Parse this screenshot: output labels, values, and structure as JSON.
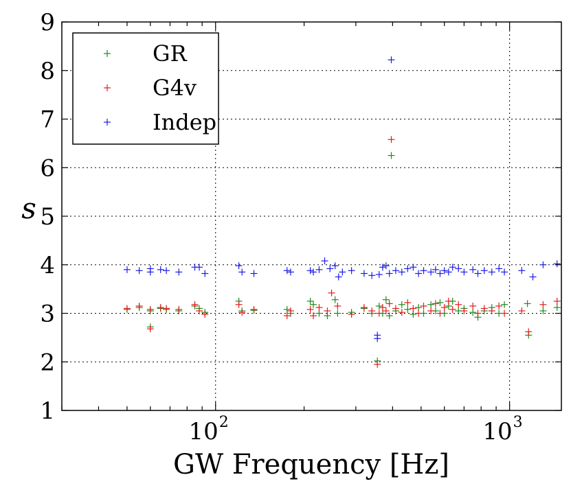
{
  "chart_data": {
    "type": "scatter",
    "title": "",
    "xlabel": "GW Frequency [Hz]",
    "ylabel": "s",
    "xscale": "log",
    "xlim": [
      30,
      1500
    ],
    "ylim": [
      1,
      9
    ],
    "grid": true,
    "legend_position": "top-left",
    "x_ticks": [
      {
        "value": 100,
        "base": "10",
        "exp": "2"
      },
      {
        "value": 1000,
        "base": "10",
        "exp": "3"
      }
    ],
    "y_ticks": [
      "1",
      "2",
      "3",
      "4",
      "5",
      "6",
      "7",
      "8",
      "9"
    ],
    "series": [
      {
        "name": "GR",
        "color": "#1a8a1a",
        "points": [
          [
            50,
            3.08
          ],
          [
            55,
            3.12
          ],
          [
            60,
            3.05
          ],
          [
            60,
            2.72
          ],
          [
            65,
            3.1
          ],
          [
            68,
            3.08
          ],
          [
            75,
            3.05
          ],
          [
            85,
            3.15
          ],
          [
            88,
            3.1
          ],
          [
            92,
            3.02
          ],
          [
            120,
            3.25
          ],
          [
            123,
            3.05
          ],
          [
            135,
            3.06
          ],
          [
            175,
            3.08
          ],
          [
            180,
            3.0
          ],
          [
            210,
            3.25
          ],
          [
            215,
            3.18
          ],
          [
            225,
            3.0
          ],
          [
            240,
            2.95
          ],
          [
            255,
            3.28
          ],
          [
            260,
            3.0
          ],
          [
            290,
            3.02
          ],
          [
            320,
            3.1
          ],
          [
            340,
            3.0
          ],
          [
            355,
            2.02
          ],
          [
            360,
            3.15
          ],
          [
            370,
            3.0
          ],
          [
            380,
            3.28
          ],
          [
            390,
            2.95
          ],
          [
            396,
            6.25
          ],
          [
            410,
            3.05
          ],
          [
            430,
            3.18
          ],
          [
            450,
            3.08
          ],
          [
            470,
            2.98
          ],
          [
            490,
            3.12
          ],
          [
            510,
            3.0
          ],
          [
            540,
            3.18
          ],
          [
            560,
            3.05
          ],
          [
            580,
            3.22
          ],
          [
            600,
            3.0
          ],
          [
            620,
            3.15
          ],
          [
            640,
            3.25
          ],
          [
            670,
            3.05
          ],
          [
            700,
            3.1
          ],
          [
            750,
            3.02
          ],
          [
            780,
            2.92
          ],
          [
            820,
            3.05
          ],
          [
            870,
            3.12
          ],
          [
            920,
            3.0
          ],
          [
            960,
            3.18
          ],
          [
            1150,
            3.2
          ],
          [
            1160,
            2.55
          ],
          [
            1300,
            3.05
          ],
          [
            1450,
            3.12
          ]
        ]
      },
      {
        "name": "G4v",
        "color": "#e31a1a",
        "points": [
          [
            50,
            3.1
          ],
          [
            55,
            3.15
          ],
          [
            60,
            3.08
          ],
          [
            60,
            2.68
          ],
          [
            65,
            3.12
          ],
          [
            68,
            3.1
          ],
          [
            75,
            3.08
          ],
          [
            85,
            3.18
          ],
          [
            88,
            3.05
          ],
          [
            92,
            2.98
          ],
          [
            120,
            3.18
          ],
          [
            123,
            3.02
          ],
          [
            135,
            3.08
          ],
          [
            175,
            2.95
          ],
          [
            180,
            3.05
          ],
          [
            210,
            3.08
          ],
          [
            215,
            2.95
          ],
          [
            225,
            3.12
          ],
          [
            240,
            3.05
          ],
          [
            248,
            3.42
          ],
          [
            260,
            3.15
          ],
          [
            290,
            2.98
          ],
          [
            320,
            3.12
          ],
          [
            340,
            3.05
          ],
          [
            355,
            1.95
          ],
          [
            360,
            3.0
          ],
          [
            370,
            3.12
          ],
          [
            380,
            3.05
          ],
          [
            390,
            3.2
          ],
          [
            396,
            6.58
          ],
          [
            410,
            3.1
          ],
          [
            430,
            3.02
          ],
          [
            450,
            3.22
          ],
          [
            470,
            3.1
          ],
          [
            490,
            3.0
          ],
          [
            510,
            3.15
          ],
          [
            540,
            3.05
          ],
          [
            560,
            3.2
          ],
          [
            580,
            3.0
          ],
          [
            600,
            3.12
          ],
          [
            620,
            3.25
          ],
          [
            640,
            3.08
          ],
          [
            670,
            3.18
          ],
          [
            700,
            3.05
          ],
          [
            750,
            3.15
          ],
          [
            780,
            3.0
          ],
          [
            820,
            3.1
          ],
          [
            870,
            3.05
          ],
          [
            920,
            3.15
          ],
          [
            960,
            3.0
          ],
          [
            1100,
            3.05
          ],
          [
            1160,
            2.62
          ],
          [
            1300,
            3.18
          ],
          [
            1450,
            3.25
          ]
        ]
      },
      {
        "name": "Indep",
        "color": "#1a1ae8",
        "points": [
          [
            50,
            3.9
          ],
          [
            55,
            3.88
          ],
          [
            60,
            3.85
          ],
          [
            60,
            3.92
          ],
          [
            65,
            3.9
          ],
          [
            68,
            3.88
          ],
          [
            75,
            3.85
          ],
          [
            85,
            3.95
          ],
          [
            88,
            3.95
          ],
          [
            92,
            3.82
          ],
          [
            120,
            3.98
          ],
          [
            123,
            3.85
          ],
          [
            135,
            3.82
          ],
          [
            175,
            3.88
          ],
          [
            180,
            3.85
          ],
          [
            210,
            3.88
          ],
          [
            215,
            3.85
          ],
          [
            225,
            3.9
          ],
          [
            235,
            4.08
          ],
          [
            245,
            3.92
          ],
          [
            255,
            3.98
          ],
          [
            262,
            3.75
          ],
          [
            270,
            3.85
          ],
          [
            290,
            3.88
          ],
          [
            320,
            3.82
          ],
          [
            340,
            3.78
          ],
          [
            355,
            2.48
          ],
          [
            355,
            2.55
          ],
          [
            360,
            3.8
          ],
          [
            370,
            3.95
          ],
          [
            380,
            3.98
          ],
          [
            390,
            3.82
          ],
          [
            396,
            8.22
          ],
          [
            410,
            3.88
          ],
          [
            430,
            3.85
          ],
          [
            450,
            3.92
          ],
          [
            470,
            3.95
          ],
          [
            490,
            3.82
          ],
          [
            510,
            3.88
          ],
          [
            540,
            3.85
          ],
          [
            560,
            3.9
          ],
          [
            580,
            3.82
          ],
          [
            600,
            3.88
          ],
          [
            620,
            3.85
          ],
          [
            640,
            3.95
          ],
          [
            670,
            3.92
          ],
          [
            700,
            3.85
          ],
          [
            750,
            3.9
          ],
          [
            780,
            3.82
          ],
          [
            820,
            3.88
          ],
          [
            870,
            3.85
          ],
          [
            920,
            3.92
          ],
          [
            960,
            3.85
          ],
          [
            1100,
            3.88
          ],
          [
            1200,
            3.75
          ],
          [
            1300,
            4.0
          ],
          [
            1450,
            4.02
          ]
        ]
      }
    ]
  }
}
